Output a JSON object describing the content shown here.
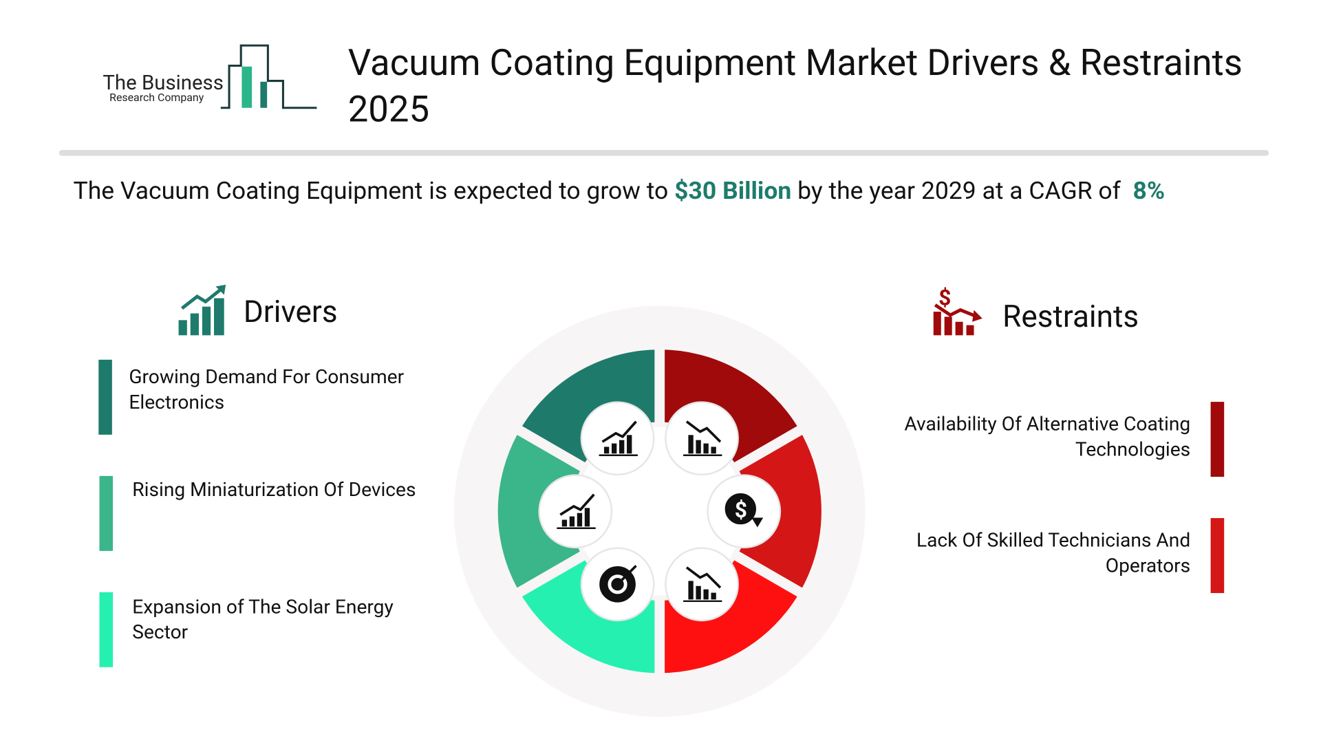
{
  "header": {
    "logo": {
      "name": "The Business",
      "tagline": "Research Company"
    },
    "title": "Vacuum Coating Equipment Market Drivers & Restraints 2025"
  },
  "summary": {
    "lead": "The Vacuum Coating Equipment is expected to grow to",
    "value": "$30 Billion",
    "middle": "by the year 2029 at a CAGR of",
    "rate": "8%"
  },
  "drivers": {
    "heading": "Drivers",
    "items": [
      "Growing Demand For Consumer Electronics",
      "Rising Miniaturization Of Devices",
      "Expansion of The Solar Energy Sector"
    ]
  },
  "restraints": {
    "heading": "Restraints",
    "items": [
      "Availability Of Alternative Coating Technologies",
      "Lack Of Skilled Technicians And Operators"
    ]
  }
}
